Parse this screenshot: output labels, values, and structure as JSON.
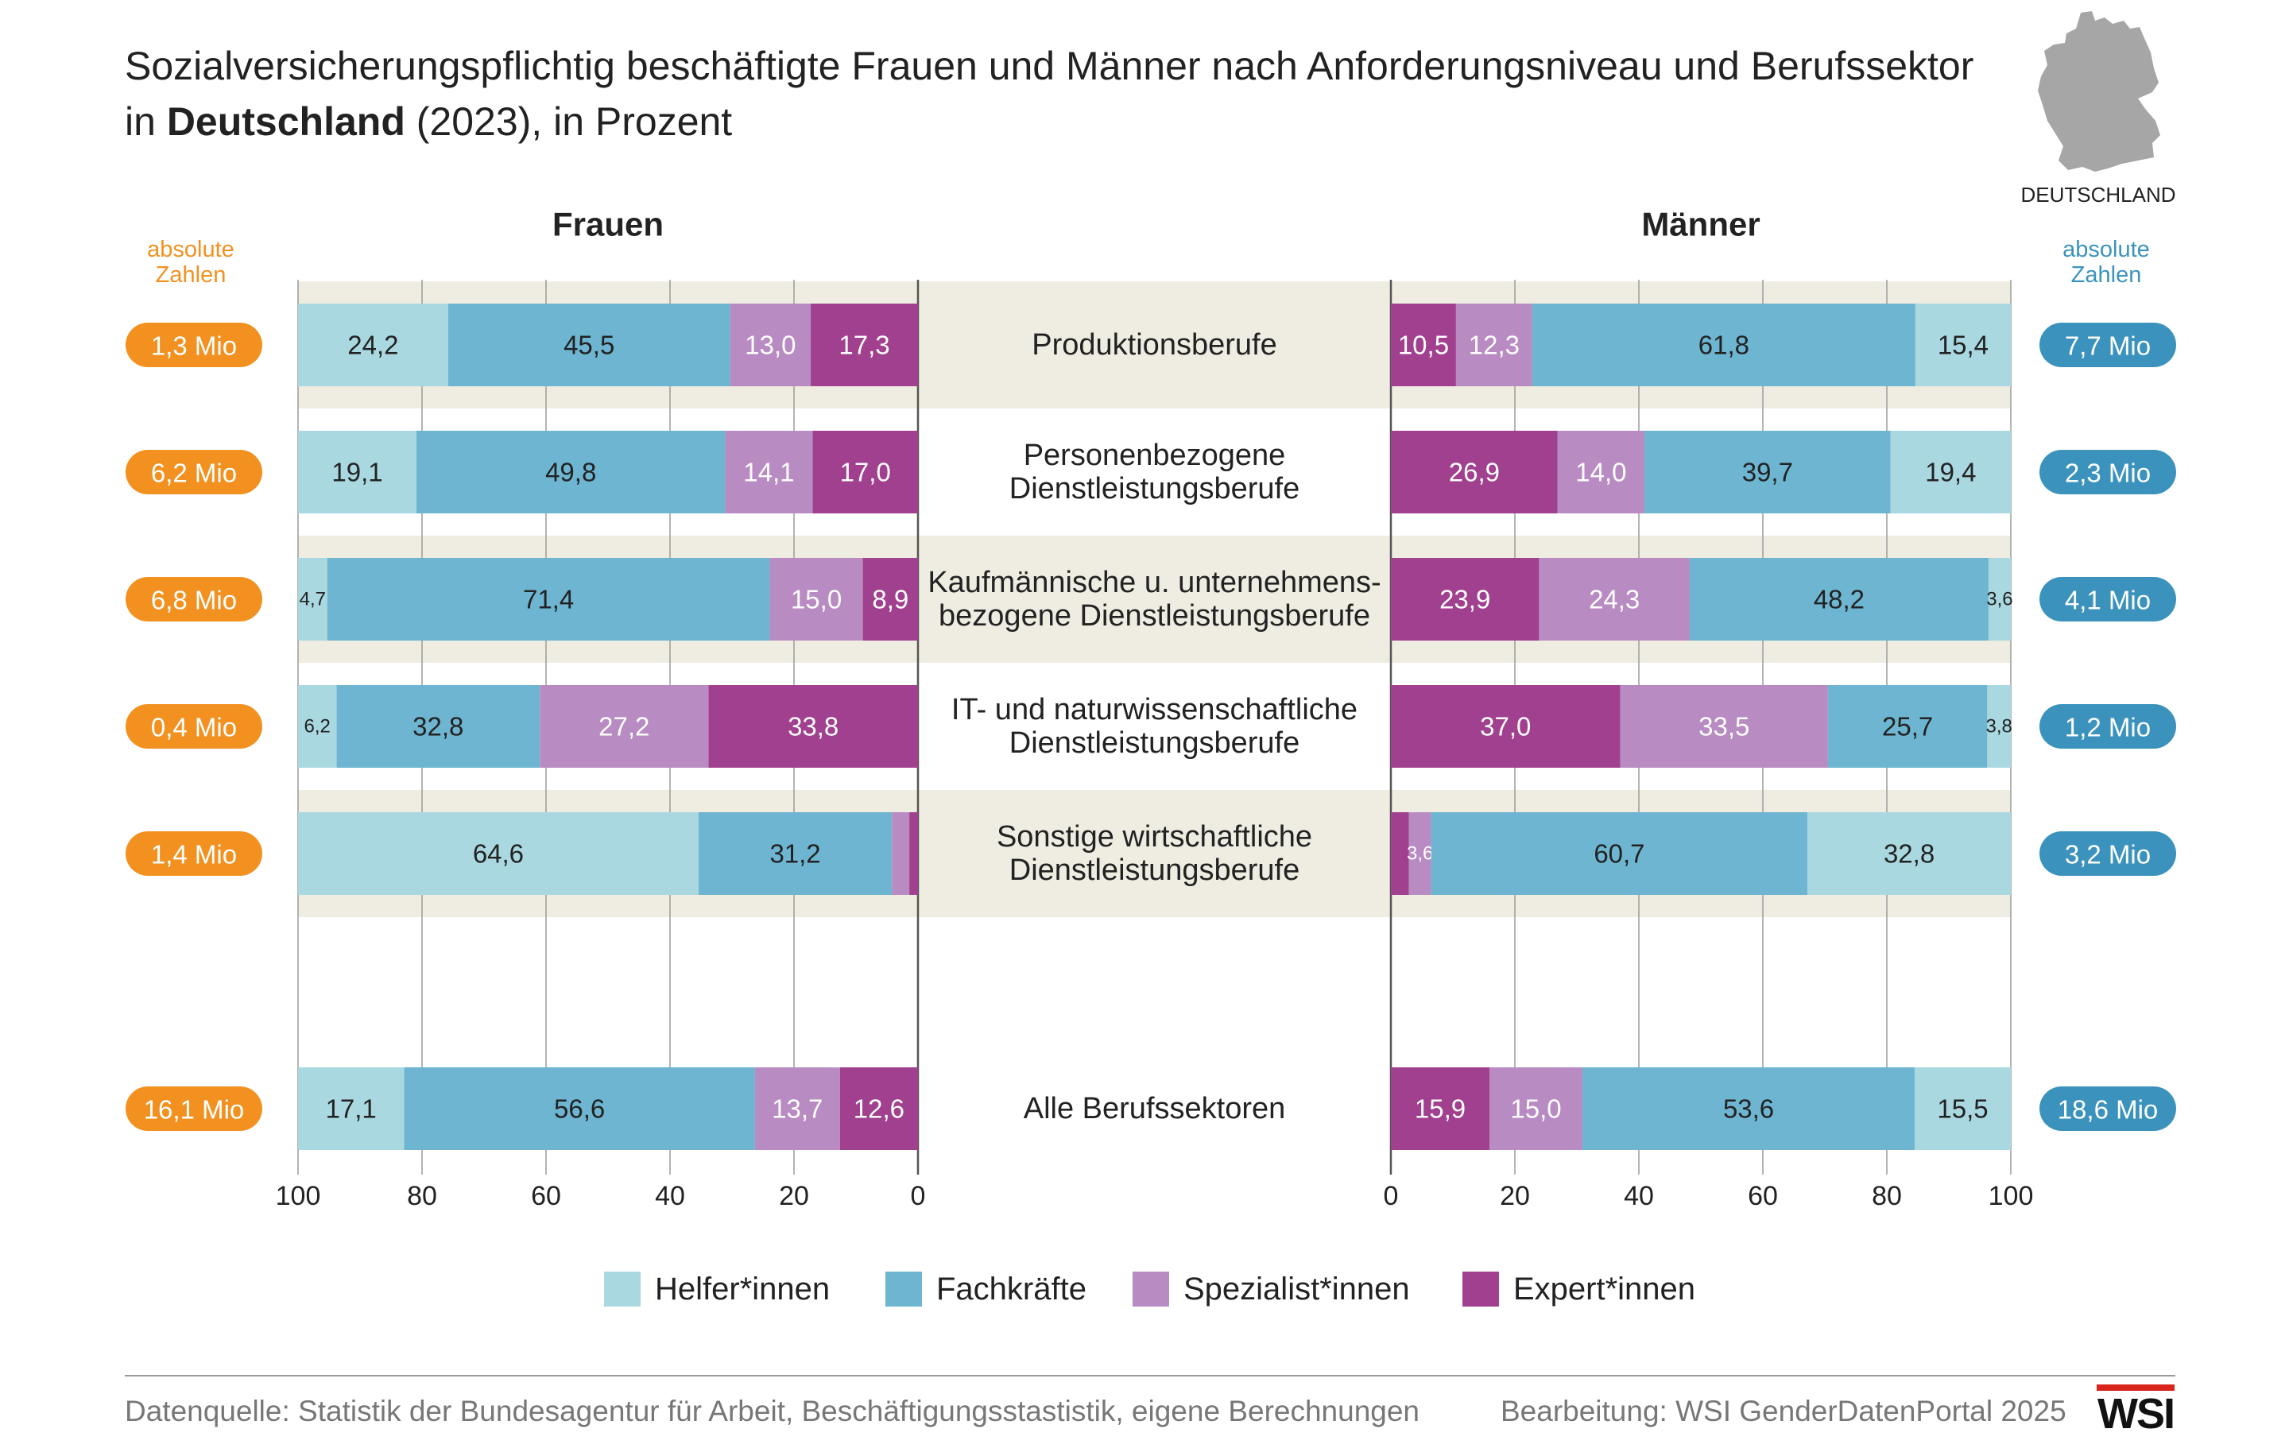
{
  "title": {
    "line1": "Sozialversicherungspflichtig beschäftigte Frauen und Männer nach Anforderungsniveau und Berufssektor",
    "line2_prefix": "in ",
    "line2_bold": "Deutschland",
    "line2_suffix": " (2023), in Prozent"
  },
  "map": {
    "label": "DEUTSCHLAND",
    "icon": "germany-map-icon"
  },
  "colors": {
    "helfer": "#a9d8e0",
    "fachkraefte": "#6db5d0",
    "spezialist": "#b98bc3",
    "expert": "#a0408f",
    "women_badge": "#f29120",
    "men_badge": "#3b93bd",
    "band": "#efece1"
  },
  "chart_data": {
    "type": "bar",
    "orientation": "horizontal",
    "stacked": true,
    "panels": [
      {
        "name": "Frauen",
        "xlim": [
          100,
          0
        ],
        "ticks": [
          100,
          80,
          60,
          40,
          20,
          0
        ]
      },
      {
        "name": "Männer",
        "xlim": [
          0,
          100
        ],
        "ticks": [
          0,
          20,
          40,
          60,
          80,
          100
        ]
      }
    ],
    "absolute_label_women": [
      "absolute",
      "Zahlen"
    ],
    "absolute_label_men": [
      "absolute",
      "Zahlen"
    ],
    "categories": [
      {
        "label": [
          "Produktionsberufe"
        ],
        "women_abs": "1,3 Mio",
        "men_abs": "7,7 Mio",
        "women": {
          "helfer": 24.2,
          "fach": 45.5,
          "spez": 13.0,
          "expert": 17.3
        },
        "men": {
          "helfer": 15.4,
          "fach": 61.8,
          "spez": 12.3,
          "expert": 10.5
        },
        "women_labels": {
          "helfer": "24,2",
          "fach": "45,5",
          "spez": "13,0",
          "expert": "17,3"
        },
        "men_labels": {
          "helfer": "15,4",
          "fach": "61,8",
          "spez": "12,3",
          "expert": "10,5"
        }
      },
      {
        "label": [
          "Personenbezogene",
          "Dienstleistungsberufe"
        ],
        "women_abs": "6,2 Mio",
        "men_abs": "2,3 Mio",
        "women": {
          "helfer": 19.1,
          "fach": 49.8,
          "spez": 14.1,
          "expert": 17.0
        },
        "men": {
          "helfer": 19.4,
          "fach": 39.7,
          "spez": 14.0,
          "expert": 26.9
        },
        "women_labels": {
          "helfer": "19,1",
          "fach": "49,8",
          "spez": "14,1",
          "expert": "17,0"
        },
        "men_labels": {
          "helfer": "19,4",
          "fach": "39,7",
          "spez": "14,0",
          "expert": "26,9"
        }
      },
      {
        "label": [
          "Kaufmännische u. unternehmens-",
          "bezogene Dienstleistungsberufe"
        ],
        "women_abs": "6,8 Mio",
        "men_abs": "4,1 Mio",
        "women": {
          "helfer": 4.7,
          "fach": 71.4,
          "spez": 15.0,
          "expert": 8.9
        },
        "men": {
          "helfer": 3.6,
          "fach": 48.2,
          "spez": 24.3,
          "expert": 23.9
        },
        "women_labels": {
          "helfer": "4,7",
          "fach": "71,4",
          "spez": "15,0",
          "expert": "8,9"
        },
        "men_labels": {
          "helfer": "3,6",
          "fach": "48,2",
          "spez": "24,3",
          "expert": "23,9"
        }
      },
      {
        "label": [
          "IT- und naturwissenschaftliche",
          "Dienstleistungsberufe"
        ],
        "women_abs": "0,4 Mio",
        "men_abs": "1,2 Mio",
        "women": {
          "helfer": 6.2,
          "fach": 32.8,
          "spez": 27.2,
          "expert": 33.8
        },
        "men": {
          "helfer": 3.8,
          "fach": 25.7,
          "spez": 33.5,
          "expert": 37.0
        },
        "women_labels": {
          "helfer": "6,2",
          "fach": "32,8",
          "spez": "27,2",
          "expert": "33,8"
        },
        "men_labels": {
          "helfer": "3,8",
          "fach": "25,7",
          "spez": "33,5",
          "expert": "37,0"
        }
      },
      {
        "label": [
          "Sonstige wirtschaftliche",
          "Dienstleistungsberufe"
        ],
        "women_abs": "1,4 Mio",
        "men_abs": "3,2 Mio",
        "women": {
          "helfer": 64.6,
          "fach": 31.2,
          "spez": 2.8,
          "expert": 1.4
        },
        "men": {
          "helfer": 32.8,
          "fach": 60.7,
          "spez": 3.6,
          "expert": 2.9
        },
        "women_labels": {
          "helfer": "64,6",
          "fach": "31,2",
          "spez": "",
          "expert": ""
        },
        "men_labels": {
          "helfer": "32,8",
          "fach": "60,7",
          "spez": "3,6",
          "expert": ""
        }
      },
      {
        "label": [
          "Alle Berufssektoren"
        ],
        "women_abs": "16,1 Mio",
        "men_abs": "18,6 Mio",
        "women": {
          "helfer": 17.1,
          "fach": 56.6,
          "spez": 13.7,
          "expert": 12.6
        },
        "men": {
          "helfer": 15.5,
          "fach": 53.6,
          "spez": 15.0,
          "expert": 15.9
        },
        "women_labels": {
          "helfer": "17,1",
          "fach": "56,6",
          "spez": "13,7",
          "expert": "12,6"
        },
        "men_labels": {
          "helfer": "15,5",
          "fach": "53,6",
          "spez": "15,0",
          "expert": "15,9"
        }
      }
    ],
    "legend": [
      {
        "key": "helfer",
        "label": "Helfer*innen"
      },
      {
        "key": "fach",
        "label": "Fachkräfte"
      },
      {
        "key": "spez",
        "label": "Spezialist*innen"
      },
      {
        "key": "expert",
        "label": "Expert*innen"
      }
    ],
    "grid": true
  },
  "footer": {
    "source": "Datenquelle: Statistik der Bundesagentur für Arbeit, Beschäftigungsstastistik, eigene Berechnungen",
    "credit": "Bearbeitung: WSI GenderDatenPortal 2025",
    "logo": "WSI"
  }
}
